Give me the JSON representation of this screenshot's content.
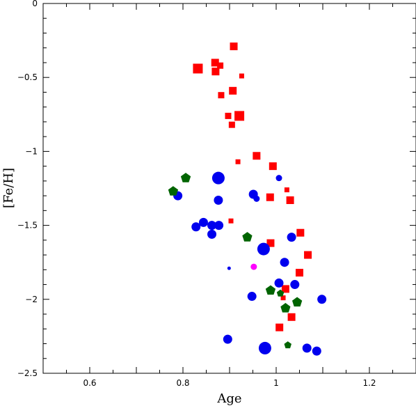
{
  "chart_data": {
    "type": "scatter",
    "title": "",
    "xlabel": "Age",
    "ylabel": "[Fe/H]",
    "xlim": [
      0.5,
      1.3
    ],
    "ylim": [
      -2.5,
      0
    ],
    "xticks_major": [
      0.6,
      0.8,
      1,
      1.2
    ],
    "xtick_labels": [
      "0.6",
      "0.8",
      "1",
      "1.2"
    ],
    "yticks_major": [
      0,
      -0.5,
      -1,
      -1.5,
      -2,
      -2.5
    ],
    "ytick_labels": [
      "0",
      "−0.5",
      "−1",
      "−1.5",
      "−2",
      "−2.5"
    ],
    "grid": false,
    "legend": "none",
    "series": [
      {
        "marker": "square",
        "color": "#ff0000",
        "points": [
          {
            "x": 0.909,
            "y": -0.29,
            "s": 3
          },
          {
            "x": 0.869,
            "y": -0.4,
            "s": 3
          },
          {
            "x": 0.88,
            "y": -0.42,
            "s": 2
          },
          {
            "x": 0.832,
            "y": -0.44,
            "s": 4
          },
          {
            "x": 0.87,
            "y": -0.46,
            "s": 3
          },
          {
            "x": 0.926,
            "y": -0.49,
            "s": 1
          },
          {
            "x": 0.907,
            "y": -0.59,
            "s": 3
          },
          {
            "x": 0.882,
            "y": -0.62,
            "s": 2
          },
          {
            "x": 0.897,
            "y": -0.76,
            "s": 2
          },
          {
            "x": 0.921,
            "y": -0.76,
            "s": 4
          },
          {
            "x": 0.905,
            "y": -0.82,
            "s": 2
          },
          {
            "x": 0.958,
            "y": -1.03,
            "s": 3
          },
          {
            "x": 0.918,
            "y": -1.07,
            "s": 1
          },
          {
            "x": 0.993,
            "y": -1.1,
            "s": 3
          },
          {
            "x": 1.023,
            "y": -1.26,
            "s": 1
          },
          {
            "x": 0.987,
            "y": -1.31,
            "s": 3
          },
          {
            "x": 1.03,
            "y": -1.33,
            "s": 3
          },
          {
            "x": 0.903,
            "y": -1.47,
            "s": 1
          },
          {
            "x": 1.052,
            "y": -1.55,
            "s": 3
          },
          {
            "x": 0.988,
            "y": -1.62,
            "s": 3
          },
          {
            "x": 1.068,
            "y": -1.7,
            "s": 3
          },
          {
            "x": 1.05,
            "y": -1.82,
            "s": 3
          },
          {
            "x": 1.02,
            "y": -1.93,
            "s": 3
          },
          {
            "x": 1.015,
            "y": -1.99,
            "s": 1
          },
          {
            "x": 1.033,
            "y": -2.12,
            "s": 3
          },
          {
            "x": 1.007,
            "y": -2.19,
            "s": 3
          }
        ]
      },
      {
        "marker": "circle",
        "color": "#0000ee",
        "points": [
          {
            "x": 0.876,
            "y": -1.18,
            "s": 4
          },
          {
            "x": 1.006,
            "y": -1.18,
            "s": 2
          },
          {
            "x": 0.789,
            "y": -1.3,
            "s": 3
          },
          {
            "x": 0.951,
            "y": -1.29,
            "s": 3
          },
          {
            "x": 0.958,
            "y": -1.32,
            "s": 2
          },
          {
            "x": 0.876,
            "y": -1.33,
            "s": 3
          },
          {
            "x": 0.844,
            "y": -1.48,
            "s": 3
          },
          {
            "x": 0.828,
            "y": -1.51,
            "s": 3
          },
          {
            "x": 0.862,
            "y": -1.5,
            "s": 3
          },
          {
            "x": 0.877,
            "y": -1.5,
            "s": 3
          },
          {
            "x": 0.862,
            "y": -1.56,
            "s": 3
          },
          {
            "x": 1.033,
            "y": -1.58,
            "s": 3
          },
          {
            "x": 0.973,
            "y": -1.66,
            "s": 4
          },
          {
            "x": 1.018,
            "y": -1.75,
            "s": 3
          },
          {
            "x": 0.899,
            "y": -1.79,
            "s": 1
          },
          {
            "x": 1.006,
            "y": -1.89,
            "s": 3
          },
          {
            "x": 1.04,
            "y": -1.9,
            "s": 3
          },
          {
            "x": 0.948,
            "y": -1.98,
            "s": 3
          },
          {
            "x": 1.098,
            "y": -2.0,
            "s": 3
          },
          {
            "x": 0.896,
            "y": -2.27,
            "s": 3
          },
          {
            "x": 0.976,
            "y": -2.33,
            "s": 4
          },
          {
            "x": 1.066,
            "y": -2.33,
            "s": 3
          },
          {
            "x": 1.087,
            "y": -2.35,
            "s": 3
          }
        ]
      },
      {
        "marker": "pentagon",
        "color": "#006400",
        "points": [
          {
            "x": 0.806,
            "y": -1.18,
            "s": 3
          },
          {
            "x": 0.779,
            "y": -1.27,
            "s": 3
          },
          {
            "x": 0.938,
            "y": -1.58,
            "s": 3
          },
          {
            "x": 0.988,
            "y": -1.94,
            "s": 3
          },
          {
            "x": 1.009,
            "y": -1.96,
            "s": 2
          },
          {
            "x": 1.045,
            "y": -2.02,
            "s": 3
          },
          {
            "x": 1.02,
            "y": -2.06,
            "s": 3
          },
          {
            "x": 1.025,
            "y": -2.31,
            "s": 2
          }
        ]
      },
      {
        "marker": "circle",
        "color": "#ff00ff",
        "points": [
          {
            "x": 0.952,
            "y": -1.78,
            "s": 2
          }
        ]
      }
    ]
  }
}
